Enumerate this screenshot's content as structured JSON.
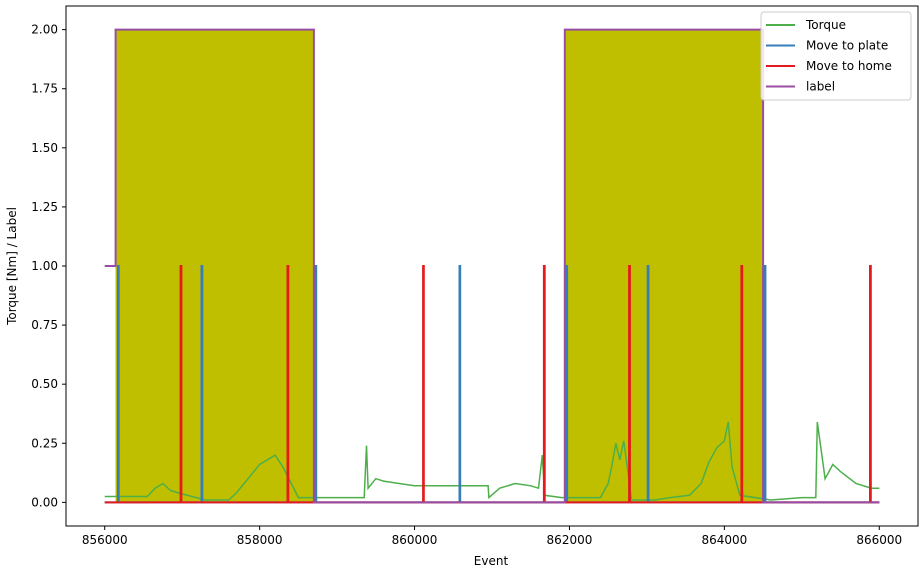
{
  "chart_data": {
    "type": "line",
    "xlabel": "Event",
    "ylabel": "Torque [Nm] / Label",
    "xlim": [
      855500,
      866500
    ],
    "ylim": [
      -0.1,
      2.1
    ],
    "x_ticks": [
      856000,
      858000,
      860000,
      862000,
      864000,
      866000
    ],
    "x_tick_labels": [
      "856000",
      "858000",
      "860000",
      "862000",
      "864000",
      "866000"
    ],
    "y_ticks": [
      0.0,
      0.25,
      0.5,
      0.75,
      1.0,
      1.25,
      1.5,
      1.75,
      2.0
    ],
    "y_tick_labels": [
      "0.00",
      "0.25",
      "0.50",
      "0.75",
      "1.00",
      "1.25",
      "1.50",
      "1.75",
      "2.00"
    ],
    "legend_position": "top-right",
    "shaded_regions": [
      {
        "x_start": 856140,
        "x_end": 858700,
        "y_start": 0,
        "y_end": 2.0,
        "color": "#bfbf00"
      },
      {
        "x_start": 861940,
        "x_end": 864500,
        "y_start": 0,
        "y_end": 2.0,
        "color": "#bfbf00"
      }
    ],
    "series": [
      {
        "name": "Torque",
        "color": "#4daf4a",
        "x": [
          856000,
          856550,
          856650,
          856750,
          856850,
          856950,
          857300,
          857600,
          857700,
          857800,
          857900,
          858000,
          858100,
          858200,
          858300,
          858500,
          858800,
          859350,
          859380,
          859400,
          859500,
          859600,
          859800,
          860000,
          860200,
          860250,
          860400,
          860600,
          860950,
          860960,
          861100,
          861300,
          861500,
          861600,
          861650,
          861680,
          861900,
          862400,
          862500,
          862550,
          862600,
          862650,
          862700,
          862780,
          862800,
          863100,
          863300,
          863550,
          863700,
          863800,
          863900,
          864000,
          864050,
          864100,
          864200,
          864600,
          865000,
          865180,
          865200,
          865300,
          865400,
          865500,
          865700,
          865900,
          866000
        ],
        "y": [
          0.025,
          0.025,
          0.06,
          0.08,
          0.05,
          0.04,
          0.01,
          0.01,
          0.04,
          0.08,
          0.12,
          0.16,
          0.18,
          0.2,
          0.15,
          0.02,
          0.02,
          0.02,
          0.24,
          0.06,
          0.1,
          0.09,
          0.08,
          0.07,
          0.07,
          0.07,
          0.07,
          0.07,
          0.07,
          0.02,
          0.06,
          0.08,
          0.07,
          0.06,
          0.2,
          0.03,
          0.02,
          0.02,
          0.08,
          0.16,
          0.25,
          0.18,
          0.26,
          0.07,
          0.01,
          0.01,
          0.02,
          0.03,
          0.08,
          0.17,
          0.23,
          0.26,
          0.34,
          0.15,
          0.03,
          0.01,
          0.02,
          0.02,
          0.34,
          0.1,
          0.16,
          0.13,
          0.08,
          0.06,
          0.06
        ]
      },
      {
        "name": "Move to plate",
        "color": "#377eb8",
        "x": [
          856000,
          856170,
          856170,
          856180,
          856180,
          857250,
          857250,
          857260,
          857260,
          858720,
          858720,
          858730,
          858730,
          860580,
          860580,
          860590,
          860590,
          861960,
          861960,
          861970,
          861970,
          863010,
          863010,
          863020,
          863020,
          864520,
          864520,
          864530,
          864530,
          866000
        ],
        "y": [
          0,
          0,
          1,
          1,
          0,
          0,
          1,
          1,
          0,
          0,
          1,
          1,
          0,
          0,
          1,
          1,
          0,
          0,
          1,
          1,
          0,
          0,
          1,
          1,
          0,
          0,
          1,
          1,
          0,
          0
        ]
      },
      {
        "name": "Move to home",
        "color": "#e41a1c",
        "x": [
          856000,
          856980,
          856980,
          856990,
          856990,
          858360,
          858360,
          858370,
          858370,
          860110,
          860110,
          860120,
          860120,
          861670,
          861670,
          861680,
          861680,
          862770,
          862770,
          862780,
          862780,
          864220,
          864220,
          864230,
          864230,
          865880,
          865880,
          865890,
          865890,
          866000
        ],
        "y": [
          0,
          0,
          1,
          1,
          0,
          0,
          1,
          1,
          0,
          0,
          1,
          1,
          0,
          0,
          1,
          1,
          0,
          0,
          1,
          1,
          0,
          0,
          1,
          1,
          0,
          0,
          1,
          1,
          0,
          0
        ]
      },
      {
        "name": "label",
        "color": "#984ea3",
        "x": [
          856000,
          856140,
          856140,
          858700,
          858700,
          861940,
          861940,
          864500,
          864500,
          866000
        ],
        "y": [
          1,
          1,
          2,
          2,
          0,
          0,
          2,
          2,
          0,
          0
        ]
      }
    ]
  }
}
